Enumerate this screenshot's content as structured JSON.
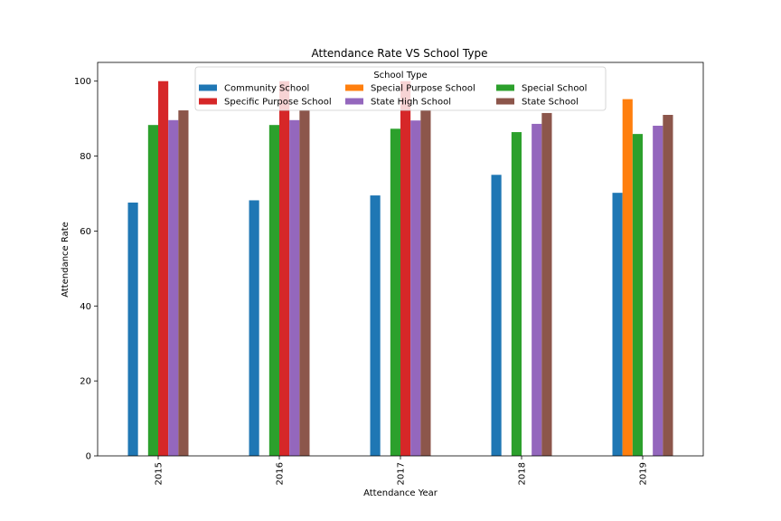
{
  "chart_data": {
    "type": "bar",
    "title": "Attendance Rate VS School Type",
    "xlabel": "Attendance Year",
    "ylabel": "Attendance Rate",
    "categories": [
      "2015",
      "2016",
      "2017",
      "2018",
      "2019"
    ],
    "ylim": [
      0,
      105
    ],
    "yticks": [
      0,
      20,
      40,
      60,
      80,
      100
    ],
    "legend": {
      "title": "School Type",
      "placement": "top-center",
      "columns": 3
    },
    "grid": false,
    "series": [
      {
        "name": "Community School",
        "color": "#1f77b4",
        "values": [
          67.6,
          68.2,
          69.5,
          75.0,
          70.2
        ]
      },
      {
        "name": "Special Purpose School",
        "color": "#ff7f0e",
        "values": [
          null,
          null,
          null,
          null,
          95.2
        ]
      },
      {
        "name": "Special School",
        "color": "#2ca02c",
        "values": [
          88.3,
          88.3,
          87.3,
          86.4,
          85.9
        ]
      },
      {
        "name": "Specific Purpose School",
        "color": "#d62728",
        "values": [
          100.0,
          100.0,
          100.0,
          null,
          null
        ]
      },
      {
        "name": "State High School",
        "color": "#9467bd",
        "values": [
          89.6,
          89.6,
          89.5,
          88.6,
          88.1
        ]
      },
      {
        "name": "State School",
        "color": "#8c564b",
        "values": [
          92.2,
          92.2,
          92.2,
          91.5,
          91.0
        ]
      }
    ]
  }
}
